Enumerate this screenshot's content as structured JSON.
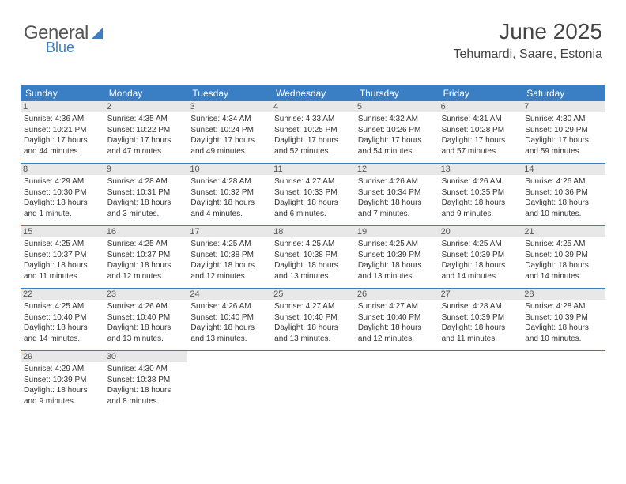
{
  "logo": {
    "word1": "General",
    "word2": "Blue"
  },
  "header": {
    "month": "June 2025",
    "location": "Tehumardi, Saare, Estonia"
  },
  "colors": {
    "accent": "#3a7fc4",
    "daynum_bg": "#e8e8e8",
    "text": "#333333",
    "logo_gray": "#555555"
  },
  "weekdays": [
    "Sunday",
    "Monday",
    "Tuesday",
    "Wednesday",
    "Thursday",
    "Friday",
    "Saturday"
  ],
  "weeks": [
    [
      {
        "n": "1",
        "sr": "Sunrise: 4:36 AM",
        "ss": "Sunset: 10:21 PM",
        "d1": "Daylight: 17 hours",
        "d2": "and 44 minutes."
      },
      {
        "n": "2",
        "sr": "Sunrise: 4:35 AM",
        "ss": "Sunset: 10:22 PM",
        "d1": "Daylight: 17 hours",
        "d2": "and 47 minutes."
      },
      {
        "n": "3",
        "sr": "Sunrise: 4:34 AM",
        "ss": "Sunset: 10:24 PM",
        "d1": "Daylight: 17 hours",
        "d2": "and 49 minutes."
      },
      {
        "n": "4",
        "sr": "Sunrise: 4:33 AM",
        "ss": "Sunset: 10:25 PM",
        "d1": "Daylight: 17 hours",
        "d2": "and 52 minutes."
      },
      {
        "n": "5",
        "sr": "Sunrise: 4:32 AM",
        "ss": "Sunset: 10:26 PM",
        "d1": "Daylight: 17 hours",
        "d2": "and 54 minutes."
      },
      {
        "n": "6",
        "sr": "Sunrise: 4:31 AM",
        "ss": "Sunset: 10:28 PM",
        "d1": "Daylight: 17 hours",
        "d2": "and 57 minutes."
      },
      {
        "n": "7",
        "sr": "Sunrise: 4:30 AM",
        "ss": "Sunset: 10:29 PM",
        "d1": "Daylight: 17 hours",
        "d2": "and 59 minutes."
      }
    ],
    [
      {
        "n": "8",
        "sr": "Sunrise: 4:29 AM",
        "ss": "Sunset: 10:30 PM",
        "d1": "Daylight: 18 hours",
        "d2": "and 1 minute."
      },
      {
        "n": "9",
        "sr": "Sunrise: 4:28 AM",
        "ss": "Sunset: 10:31 PM",
        "d1": "Daylight: 18 hours",
        "d2": "and 3 minutes."
      },
      {
        "n": "10",
        "sr": "Sunrise: 4:28 AM",
        "ss": "Sunset: 10:32 PM",
        "d1": "Daylight: 18 hours",
        "d2": "and 4 minutes."
      },
      {
        "n": "11",
        "sr": "Sunrise: 4:27 AM",
        "ss": "Sunset: 10:33 PM",
        "d1": "Daylight: 18 hours",
        "d2": "and 6 minutes."
      },
      {
        "n": "12",
        "sr": "Sunrise: 4:26 AM",
        "ss": "Sunset: 10:34 PM",
        "d1": "Daylight: 18 hours",
        "d2": "and 7 minutes."
      },
      {
        "n": "13",
        "sr": "Sunrise: 4:26 AM",
        "ss": "Sunset: 10:35 PM",
        "d1": "Daylight: 18 hours",
        "d2": "and 9 minutes."
      },
      {
        "n": "14",
        "sr": "Sunrise: 4:26 AM",
        "ss": "Sunset: 10:36 PM",
        "d1": "Daylight: 18 hours",
        "d2": "and 10 minutes."
      }
    ],
    [
      {
        "n": "15",
        "sr": "Sunrise: 4:25 AM",
        "ss": "Sunset: 10:37 PM",
        "d1": "Daylight: 18 hours",
        "d2": "and 11 minutes."
      },
      {
        "n": "16",
        "sr": "Sunrise: 4:25 AM",
        "ss": "Sunset: 10:37 PM",
        "d1": "Daylight: 18 hours",
        "d2": "and 12 minutes."
      },
      {
        "n": "17",
        "sr": "Sunrise: 4:25 AM",
        "ss": "Sunset: 10:38 PM",
        "d1": "Daylight: 18 hours",
        "d2": "and 12 minutes."
      },
      {
        "n": "18",
        "sr": "Sunrise: 4:25 AM",
        "ss": "Sunset: 10:38 PM",
        "d1": "Daylight: 18 hours",
        "d2": "and 13 minutes."
      },
      {
        "n": "19",
        "sr": "Sunrise: 4:25 AM",
        "ss": "Sunset: 10:39 PM",
        "d1": "Daylight: 18 hours",
        "d2": "and 13 minutes."
      },
      {
        "n": "20",
        "sr": "Sunrise: 4:25 AM",
        "ss": "Sunset: 10:39 PM",
        "d1": "Daylight: 18 hours",
        "d2": "and 14 minutes."
      },
      {
        "n": "21",
        "sr": "Sunrise: 4:25 AM",
        "ss": "Sunset: 10:39 PM",
        "d1": "Daylight: 18 hours",
        "d2": "and 14 minutes."
      }
    ],
    [
      {
        "n": "22",
        "sr": "Sunrise: 4:25 AM",
        "ss": "Sunset: 10:40 PM",
        "d1": "Daylight: 18 hours",
        "d2": "and 14 minutes."
      },
      {
        "n": "23",
        "sr": "Sunrise: 4:26 AM",
        "ss": "Sunset: 10:40 PM",
        "d1": "Daylight: 18 hours",
        "d2": "and 13 minutes."
      },
      {
        "n": "24",
        "sr": "Sunrise: 4:26 AM",
        "ss": "Sunset: 10:40 PM",
        "d1": "Daylight: 18 hours",
        "d2": "and 13 minutes."
      },
      {
        "n": "25",
        "sr": "Sunrise: 4:27 AM",
        "ss": "Sunset: 10:40 PM",
        "d1": "Daylight: 18 hours",
        "d2": "and 13 minutes."
      },
      {
        "n": "26",
        "sr": "Sunrise: 4:27 AM",
        "ss": "Sunset: 10:40 PM",
        "d1": "Daylight: 18 hours",
        "d2": "and 12 minutes."
      },
      {
        "n": "27",
        "sr": "Sunrise: 4:28 AM",
        "ss": "Sunset: 10:39 PM",
        "d1": "Daylight: 18 hours",
        "d2": "and 11 minutes."
      },
      {
        "n": "28",
        "sr": "Sunrise: 4:28 AM",
        "ss": "Sunset: 10:39 PM",
        "d1": "Daylight: 18 hours",
        "d2": "and 10 minutes."
      }
    ],
    [
      {
        "n": "29",
        "sr": "Sunrise: 4:29 AM",
        "ss": "Sunset: 10:39 PM",
        "d1": "Daylight: 18 hours",
        "d2": "and 9 minutes."
      },
      {
        "n": "30",
        "sr": "Sunrise: 4:30 AM",
        "ss": "Sunset: 10:38 PM",
        "d1": "Daylight: 18 hours",
        "d2": "and 8 minutes."
      },
      null,
      null,
      null,
      null,
      null
    ]
  ]
}
